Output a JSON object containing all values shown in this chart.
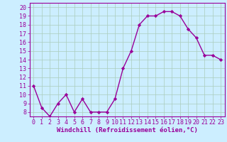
{
  "hours": [
    0,
    1,
    2,
    3,
    4,
    5,
    6,
    7,
    8,
    9,
    10,
    11,
    12,
    13,
    14,
    15,
    16,
    17,
    18,
    19,
    20,
    21,
    22,
    23
  ],
  "values": [
    11,
    8.5,
    7.5,
    9,
    10,
    8,
    9.5,
    8,
    8,
    8,
    9.5,
    13,
    15,
    18,
    19,
    19,
    19.5,
    19.5,
    19,
    17.5,
    16.5,
    14.5,
    14.5,
    14
  ],
  "line_color": "#990099",
  "marker": "D",
  "marker_size": 2.2,
  "bg_color": "#cceeff",
  "grid_color": "#aaccbb",
  "xlabel": "Windchill (Refroidissement éolien,°C)",
  "xlabel_color": "#990099",
  "tick_color": "#990099",
  "ylim": [
    7.5,
    20.5
  ],
  "xlim": [
    -0.5,
    23.5
  ],
  "yticks": [
    8,
    9,
    10,
    11,
    12,
    13,
    14,
    15,
    16,
    17,
    18,
    19,
    20
  ],
  "xticks": [
    0,
    1,
    2,
    3,
    4,
    5,
    6,
    7,
    8,
    9,
    10,
    11,
    12,
    13,
    14,
    15,
    16,
    17,
    18,
    19,
    20,
    21,
    22,
    23
  ],
  "axis_color": "#990099",
  "linewidth": 1.0,
  "tick_fontsize": 6.0,
  "xlabel_fontsize": 6.5
}
